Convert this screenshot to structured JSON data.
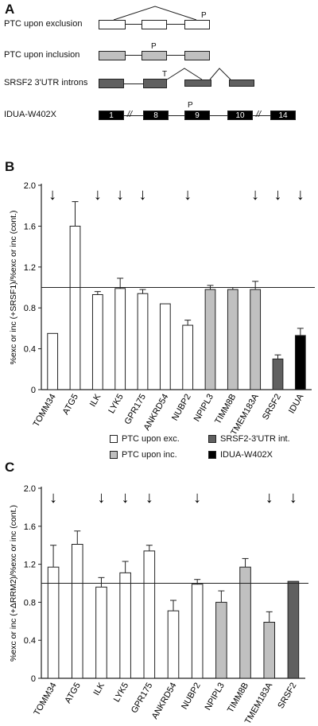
{
  "panels": {
    "a": "A",
    "b": "B",
    "c": "C"
  },
  "panelA": {
    "rows": [
      {
        "label": "PTC upon exclusion"
      },
      {
        "label": "PTC upon inclusion"
      },
      {
        "label": "SRSF2 3'UTR introns"
      },
      {
        "label": "IDUA-W402X"
      }
    ],
    "ptc_marker": "P",
    "t_marker": "T",
    "idua_exons": [
      "1",
      "8",
      "9",
      "10",
      "14"
    ],
    "break_mark": "//"
  },
  "colors": {
    "exc": "#ffffff",
    "inc": "#c0c0c0",
    "utr": "#606060",
    "idua": "#000000"
  },
  "legend": [
    {
      "label": "PTC upon exc.",
      "color": "#ffffff"
    },
    {
      "label": "SRSF2-3'UTR int.",
      "color": "#606060"
    },
    {
      "label": "PTC upon inc.",
      "color": "#c0c0c0"
    },
    {
      "label": "IDUA-W402X",
      "color": "#000000"
    }
  ],
  "arrow_glyph": "↓",
  "chart_data": [
    {
      "type": "bar",
      "ylabel": "%exc or inc (+SRSF1)/%exc or inc (cont.)",
      "ylim": [
        0,
        2.0
      ],
      "yticks": [
        "0",
        "0.4",
        "0.8",
        "1.2",
        "1.6",
        "2.0"
      ],
      "reference_line": 1.0,
      "categories": [
        "TOMM34",
        "ATG5",
        "ILK",
        "LYK5",
        "GPR175",
        "ANKRD54",
        "NUBP2",
        "NPIPL3",
        "TIMM8B",
        "TMEM183A",
        "SRSF2",
        "IDUA"
      ],
      "values": [
        0.55,
        1.6,
        0.93,
        0.99,
        0.94,
        0.84,
        0.63,
        0.98,
        0.98,
        0.98,
        0.3,
        0.53
      ],
      "errors": [
        0.0,
        0.24,
        0.03,
        0.1,
        0.04,
        0.0,
        0.05,
        0.04,
        0.02,
        0.08,
        0.04,
        0.07
      ],
      "groups": [
        "exc",
        "exc",
        "exc",
        "exc",
        "exc",
        "exc",
        "exc",
        "inc",
        "inc",
        "inc",
        "utr",
        "idua"
      ],
      "arrows": [
        "TOMM34",
        "ILK",
        "LYK5",
        "GPR175",
        "NUBP2",
        "TMEM183A",
        "SRSF2",
        "IDUA"
      ]
    },
    {
      "type": "bar",
      "ylabel": "%exc or inc (+ΔRRM2)/%exc or inc (cont.)",
      "ylim": [
        0,
        2.0
      ],
      "yticks": [
        "0",
        "0.4",
        "0.8",
        "1.2",
        "1.6",
        "2.0"
      ],
      "reference_line": 1.0,
      "categories": [
        "TOMM34",
        "ATG5",
        "ILK",
        "LYK5",
        "GPR175",
        "ANKRD54",
        "NUBP2",
        "NPIPL3",
        "TIMM8B",
        "TMEM183A",
        "SRSF2"
      ],
      "values": [
        1.17,
        1.41,
        0.96,
        1.11,
        1.34,
        0.71,
        0.99,
        0.8,
        1.17,
        0.59,
        1.02
      ],
      "errors": [
        0.23,
        0.14,
        0.1,
        0.12,
        0.06,
        0.11,
        0.05,
        0.12,
        0.09,
        0.11,
        0.0
      ],
      "groups": [
        "exc",
        "exc",
        "exc",
        "exc",
        "exc",
        "exc",
        "exc",
        "inc",
        "inc",
        "inc",
        "utr"
      ],
      "arrows": [
        "TOMM34",
        "ILK",
        "LYK5",
        "GPR175",
        "NUBP2",
        "TMEM183A",
        "SRSF2"
      ]
    }
  ]
}
